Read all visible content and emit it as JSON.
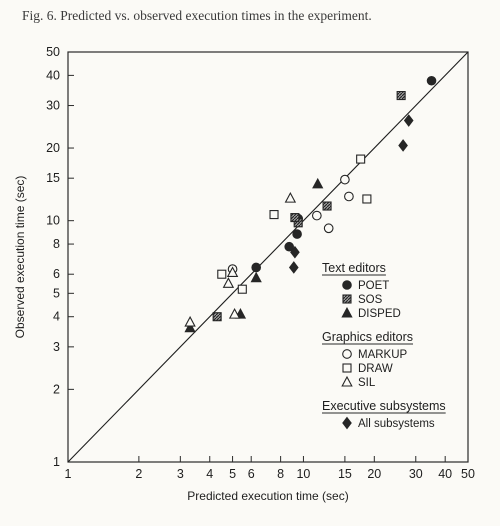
{
  "caption": "Fig. 6.  Predicted vs. observed execution times in the experiment.",
  "chart_data": {
    "type": "scatter",
    "title": "Fig. 6.  Predicted vs. observed execution times in the experiment.",
    "xlabel": "Predicted execution time (sec)",
    "ylabel": "Observed execution time (sec)",
    "xscale": "log",
    "yscale": "log",
    "xlim": [
      1,
      50
    ],
    "ylim": [
      1,
      50
    ],
    "xticks": [
      1,
      2,
      3,
      4,
      5,
      6,
      8,
      10,
      15,
      20,
      30,
      40,
      50
    ],
    "xtick_labels": [
      "1",
      "2",
      "3",
      "4",
      "5",
      "6",
      "8",
      "10",
      "15",
      "20",
      "30",
      "40",
      "50"
    ],
    "yticks": [
      1,
      2,
      3,
      4,
      5,
      6,
      8,
      10,
      15,
      20,
      30,
      40,
      50
    ],
    "ytick_labels": [
      "1",
      "2",
      "3",
      "4",
      "5",
      "6",
      "8",
      "10",
      "15",
      "20",
      "30",
      "40",
      "50"
    ],
    "grid": false,
    "reference_line": "y = x",
    "legend_position": "lower-right",
    "legend_groups": [
      {
        "heading": "Text editors",
        "entries": [
          {
            "label": "POET",
            "marker": "filled-circle"
          },
          {
            "label": "SOS",
            "marker": "hatched-square"
          },
          {
            "label": "DISPED",
            "marker": "filled-triangle"
          }
        ]
      },
      {
        "heading": "Graphics editors",
        "entries": [
          {
            "label": "MARKUP",
            "marker": "open-circle"
          },
          {
            "label": "DRAW",
            "marker": "open-square"
          },
          {
            "label": "SIL",
            "marker": "open-triangle"
          }
        ]
      },
      {
        "heading": "Executive subsystems",
        "entries": [
          {
            "label": "All subsystems",
            "marker": "filled-diamond"
          }
        ]
      }
    ],
    "series": [
      {
        "name": "POET",
        "marker": "filled-circle",
        "points": [
          {
            "x": 35,
            "y": 38
          },
          {
            "x": 6.3,
            "y": 6.4
          },
          {
            "x": 8.7,
            "y": 7.8
          },
          {
            "x": 9.4,
            "y": 8.8
          },
          {
            "x": 9.5,
            "y": 10.2
          }
        ]
      },
      {
        "name": "SOS",
        "marker": "hatched-square",
        "points": [
          {
            "x": 26,
            "y": 33
          },
          {
            "x": 4.3,
            "y": 4
          },
          {
            "x": 12.6,
            "y": 11.5
          },
          {
            "x": 9.5,
            "y": 9.8
          },
          {
            "x": 9.2,
            "y": 10.3
          }
        ]
      },
      {
        "name": "DISPED",
        "marker": "filled-triangle",
        "points": [
          {
            "x": 11.5,
            "y": 14.2
          },
          {
            "x": 6.3,
            "y": 5.8
          },
          {
            "x": 5.4,
            "y": 4.1
          },
          {
            "x": 3.3,
            "y": 3.6
          }
        ]
      },
      {
        "name": "MARKUP",
        "marker": "open-circle",
        "points": [
          {
            "x": 15,
            "y": 14.8
          },
          {
            "x": 15.6,
            "y": 12.6
          },
          {
            "x": 11.4,
            "y": 10.5
          },
          {
            "x": 12.8,
            "y": 9.3
          },
          {
            "x": 5,
            "y": 6.3
          }
        ]
      },
      {
        "name": "DRAW",
        "marker": "open-square",
        "points": [
          {
            "x": 17.5,
            "y": 18
          },
          {
            "x": 18.6,
            "y": 12.3
          },
          {
            "x": 7.5,
            "y": 10.6
          },
          {
            "x": 4.5,
            "y": 6
          },
          {
            "x": 5.5,
            "y": 5.2
          }
        ]
      },
      {
        "name": "SIL",
        "marker": "open-triangle",
        "points": [
          {
            "x": 8.8,
            "y": 12.4
          },
          {
            "x": 4.8,
            "y": 5.5
          },
          {
            "x": 5,
            "y": 6.1
          },
          {
            "x": 5.1,
            "y": 4.1
          },
          {
            "x": 3.3,
            "y": 3.8
          }
        ]
      },
      {
        "name": "All subsystems",
        "marker": "filled-diamond",
        "points": [
          {
            "x": 28,
            "y": 26
          },
          {
            "x": 26.5,
            "y": 20.5
          },
          {
            "x": 9.2,
            "y": 7.4
          },
          {
            "x": 9.1,
            "y": 6.4
          }
        ]
      }
    ]
  }
}
